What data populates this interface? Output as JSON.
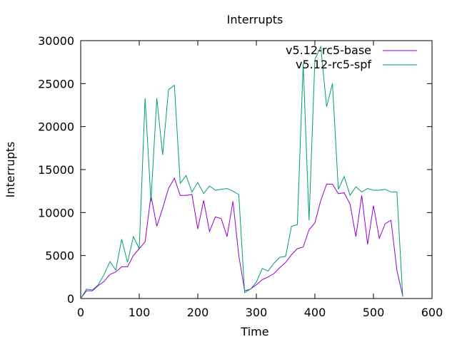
{
  "chart_data": {
    "type": "line",
    "title": "Interrupts",
    "xlabel": "Time",
    "ylabel": "Interrupts",
    "xlim": [
      0,
      600
    ],
    "ylim": [
      0,
      30000
    ],
    "xticks": [
      0,
      100,
      200,
      300,
      400,
      500,
      600
    ],
    "yticks": [
      0,
      5000,
      10000,
      15000,
      20000,
      25000,
      30000
    ],
    "grid": false,
    "legend_position": "top-right",
    "series": [
      {
        "name": "v5.12-rc5-base",
        "color": "#9400d3",
        "x": [
          0,
          10,
          20,
          30,
          40,
          50,
          60,
          70,
          80,
          90,
          100,
          110,
          120,
          130,
          140,
          150,
          160,
          170,
          180,
          190,
          200,
          210,
          220,
          230,
          240,
          250,
          260,
          270,
          280,
          290,
          300,
          310,
          320,
          330,
          340,
          350,
          360,
          370,
          380,
          390,
          400,
          410,
          420,
          430,
          440,
          450,
          460,
          470,
          480,
          490,
          500,
          510,
          520,
          530,
          540,
          550
        ],
        "y": [
          0,
          900,
          900,
          1500,
          2000,
          2800,
          3100,
          3700,
          3700,
          5000,
          5800,
          6600,
          12000,
          8400,
          10500,
          12800,
          14000,
          12000,
          12000,
          12100,
          8100,
          11400,
          7800,
          9500,
          9300,
          7200,
          11300,
          5000,
          900,
          1100,
          1600,
          2200,
          2500,
          2900,
          3600,
          4200,
          5100,
          5800,
          6000,
          8000,
          8800,
          11400,
          13300,
          13300,
          12200,
          12300,
          11000,
          7200,
          12000,
          6300,
          10800,
          7000,
          8700,
          9100,
          3300,
          300
        ]
      },
      {
        "name": "v5.12-rc5-spf",
        "color": "#009e73",
        "x": [
          0,
          10,
          20,
          30,
          40,
          50,
          60,
          70,
          80,
          90,
          100,
          110,
          120,
          130,
          140,
          150,
          160,
          170,
          180,
          190,
          200,
          210,
          220,
          230,
          240,
          250,
          260,
          270,
          280,
          290,
          300,
          310,
          320,
          330,
          340,
          350,
          360,
          370,
          380,
          390,
          400,
          410,
          420,
          430,
          440,
          450,
          460,
          470,
          480,
          490,
          500,
          510,
          520,
          530,
          540,
          550
        ],
        "y": [
          0,
          1100,
          1000,
          1600,
          2800,
          4300,
          3300,
          6900,
          4200,
          7200,
          5800,
          23300,
          11300,
          23300,
          16700,
          24300,
          24800,
          13400,
          14300,
          12400,
          13500,
          12200,
          13100,
          12600,
          12700,
          12800,
          12500,
          12100,
          700,
          1100,
          1900,
          3500,
          3200,
          4100,
          4800,
          4900,
          8400,
          8600,
          27300,
          9100,
          27800,
          29300,
          22300,
          25000,
          12700,
          14200,
          12000,
          13000,
          12400,
          12800,
          12600,
          12600,
          12700,
          12400,
          12400,
          200
        ]
      }
    ]
  }
}
